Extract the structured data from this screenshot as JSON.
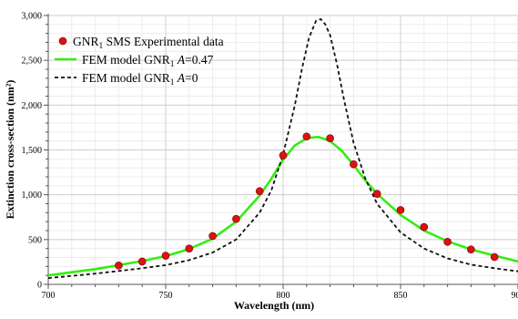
{
  "chart_data": {
    "type": "scatter",
    "xlabel": "Wavelength (nm)",
    "ylabel": "Extinction cross-section (nm²)",
    "xlim": [
      700,
      900
    ],
    "ylim": [
      0,
      3000
    ],
    "x_ticks": [
      700,
      750,
      800,
      850,
      900
    ],
    "y_ticks": [
      0,
      500,
      1000,
      1500,
      2000,
      2500,
      3000
    ],
    "x_tick_labels": [
      "700",
      "750",
      "800",
      "850",
      "900"
    ],
    "y_tick_labels": [
      "0",
      "500",
      "1,000",
      "1,500",
      "2,000",
      "2,500",
      "3,000"
    ],
    "grid": true,
    "legend_position": "top-left",
    "series": [
      {
        "name_main": "GNR",
        "name_sub": "1",
        "name_rest": " SMS Experimental data",
        "style": "markers",
        "color": "#dd1111",
        "x": [
          730,
          740,
          750,
          760,
          770,
          780,
          790,
          800,
          810,
          820,
          830,
          840,
          850,
          860,
          870,
          880,
          890
        ],
        "y": [
          210,
          255,
          320,
          400,
          540,
          730,
          1040,
          1440,
          1650,
          1630,
          1340,
          1010,
          830,
          640,
          475,
          390,
          305
        ]
      },
      {
        "name_main": "FEM model GNR",
        "name_sub": "1",
        "name_rest": " ",
        "name_italic": "A",
        "name_tail": "=0.47",
        "style": "solid",
        "color": "#33ee11",
        "x": [
          700,
          710,
          720,
          730,
          740,
          750,
          760,
          770,
          780,
          790,
          795,
          800,
          805,
          810,
          815,
          820,
          825,
          830,
          835,
          840,
          850,
          860,
          870,
          880,
          890,
          900
        ],
        "y": [
          100,
          135,
          170,
          215,
          260,
          315,
          395,
          510,
          700,
          990,
          1180,
          1390,
          1550,
          1630,
          1645,
          1600,
          1490,
          1330,
          1160,
          1010,
          775,
          600,
          480,
          390,
          320,
          255
        ]
      },
      {
        "name_main": "FEM model GNR",
        "name_sub": "1",
        "name_rest": " ",
        "name_italic": "A",
        "name_tail": "=0",
        "style": "dashed",
        "color": "#111111",
        "x": [
          700,
          710,
          720,
          730,
          740,
          750,
          760,
          770,
          780,
          790,
          795,
          800,
          805,
          808,
          811,
          814,
          816,
          818,
          820,
          823,
          826,
          830,
          835,
          840,
          850,
          860,
          870,
          880,
          890,
          900
        ],
        "y": [
          70,
          95,
          120,
          150,
          180,
          215,
          270,
          355,
          500,
          800,
          1050,
          1450,
          2000,
          2400,
          2750,
          2940,
          2960,
          2900,
          2780,
          2450,
          2050,
          1580,
          1180,
          900,
          580,
          400,
          290,
          220,
          180,
          145
        ]
      }
    ]
  }
}
